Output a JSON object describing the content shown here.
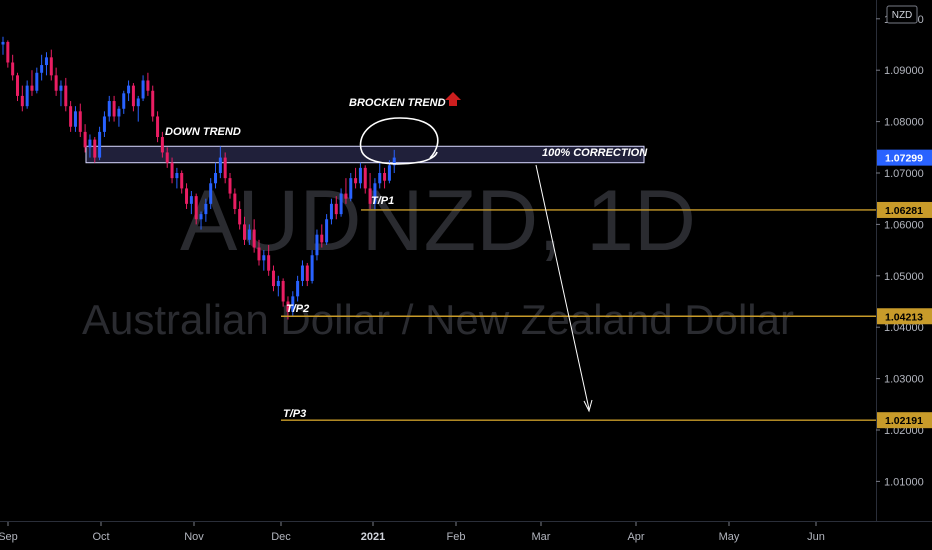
{
  "watermark": {
    "symbol": "AUDNZD, 1D",
    "description": "Australian Dollar / New Zealand Dollar"
  },
  "currency_badge": "NZD",
  "colors": {
    "background": "#000000",
    "up": "#2962ff",
    "down": "#e91e63",
    "level": "#c89b2a",
    "last_price": "#2962ff",
    "zone_fill": "#3a3a6a",
    "arrow_red": "#cc1e1e"
  },
  "annotations": {
    "down_trend": "DOWN TREND",
    "broken_trend": "BROCKEN TREND",
    "correction": "100% CORRECTION",
    "tp1": "T/P1",
    "tp2": "T/P2",
    "tp3": "T/P3"
  },
  "chart_data": {
    "type": "candlestick",
    "title": "",
    "xlabel": "",
    "ylabel": "",
    "ylim": [
      1.0,
      1.097
    ],
    "y_ticks": [
      "1.01000",
      "1.02000",
      "1.03000",
      "1.04000",
      "1.05000",
      "1.06000",
      "1.07000",
      "1.08000",
      "1.09000",
      "1.10000"
    ],
    "x_ticks": [
      "Sep",
      "Oct",
      "Nov",
      "Dec",
      "2021",
      "Feb",
      "Mar",
      "Apr",
      "May",
      "Jun"
    ],
    "price_labels": [
      {
        "label": "1.07299",
        "value": 1.07299,
        "kind": "last"
      },
      {
        "label": "1.06281",
        "value": 1.06281,
        "kind": "level"
      },
      {
        "label": "1.04213",
        "value": 1.04213,
        "kind": "level"
      },
      {
        "label": "1.02191",
        "value": 1.02191,
        "kind": "level"
      }
    ],
    "resistance_zone": [
      1.072,
      1.0752
    ],
    "series": [
      {
        "values": [
          [
            1.095,
            1.0965,
            1.093,
            1.0955
          ],
          [
            1.0955,
            1.0958,
            1.0905,
            1.0915
          ],
          [
            1.0915,
            1.093,
            1.088,
            1.089
          ],
          [
            1.089,
            1.0895,
            1.084,
            1.085
          ],
          [
            1.085,
            1.087,
            1.082,
            1.083
          ],
          [
            1.083,
            1.088,
            1.0825,
            1.087
          ],
          [
            1.087,
            1.09,
            1.085,
            1.086
          ],
          [
            1.086,
            1.0905,
            1.0855,
            1.0895
          ],
          [
            1.0895,
            1.093,
            1.088,
            1.091
          ],
          [
            1.091,
            1.0935,
            1.089,
            1.0925
          ],
          [
            1.0925,
            1.094,
            1.088,
            1.089
          ],
          [
            1.089,
            1.0905,
            1.085,
            1.086
          ],
          [
            1.086,
            1.088,
            1.083,
            1.087
          ],
          [
            1.087,
            1.0885,
            1.082,
            1.083
          ],
          [
            1.083,
            1.084,
            1.078,
            1.079
          ],
          [
            1.079,
            1.083,
            1.078,
            1.082
          ],
          [
            1.082,
            1.0835,
            1.077,
            1.078
          ],
          [
            1.078,
            1.0795,
            1.074,
            1.075
          ],
          [
            1.075,
            1.0775,
            1.073,
            1.0765
          ],
          [
            1.0765,
            1.077,
            1.072,
            1.073
          ],
          [
            1.073,
            1.079,
            1.0725,
            1.078
          ],
          [
            1.078,
            1.082,
            1.077,
            1.081
          ],
          [
            1.081,
            1.085,
            1.08,
            1.084
          ],
          [
            1.084,
            1.085,
            1.08,
            1.081
          ],
          [
            1.081,
            1.083,
            1.079,
            1.0825
          ],
          [
            1.0825,
            1.086,
            1.0815,
            1.0855
          ],
          [
            1.0855,
            1.088,
            1.084,
            1.087
          ],
          [
            1.087,
            1.0875,
            1.082,
            1.083
          ],
          [
            1.083,
            1.085,
            1.08,
            1.0845
          ],
          [
            1.0845,
            1.089,
            1.084,
            1.088
          ],
          [
            1.088,
            1.0895,
            1.085,
            1.086
          ],
          [
            1.086,
            1.087,
            1.08,
            1.081
          ],
          [
            1.081,
            1.082,
            1.076,
            1.077
          ],
          [
            1.077,
            1.078,
            1.073,
            1.074
          ],
          [
            1.074,
            1.075,
            1.071,
            1.072
          ],
          [
            1.072,
            1.073,
            1.068,
            1.069
          ],
          [
            1.069,
            1.071,
            1.067,
            1.07
          ],
          [
            1.07,
            1.0705,
            1.066,
            1.067
          ],
          [
            1.067,
            1.068,
            1.063,
            1.064
          ],
          [
            1.064,
            1.0665,
            1.062,
            1.0655
          ],
          [
            1.0655,
            1.066,
            1.06,
            1.061
          ],
          [
            1.061,
            1.0625,
            1.059,
            1.062
          ],
          [
            1.062,
            1.065,
            1.0605,
            1.064
          ],
          [
            1.064,
            1.069,
            1.063,
            1.068
          ],
          [
            1.068,
            1.072,
            1.067,
            1.07
          ],
          [
            1.07,
            1.0752,
            1.069,
            1.073
          ],
          [
            1.073,
            1.074,
            1.068,
            1.069
          ],
          [
            1.069,
            1.07,
            1.065,
            1.066
          ],
          [
            1.066,
            1.067,
            1.062,
            1.063
          ],
          [
            1.063,
            1.0645,
            1.059,
            1.06
          ],
          [
            1.06,
            1.0615,
            1.056,
            1.057
          ],
          [
            1.057,
            1.06,
            1.056,
            1.059
          ],
          [
            1.059,
            1.061,
            1.0545,
            1.0555
          ],
          [
            1.0555,
            1.057,
            1.052,
            1.053
          ],
          [
            1.053,
            1.055,
            1.051,
            1.054
          ],
          [
            1.054,
            1.056,
            1.05,
            1.051
          ],
          [
            1.051,
            1.052,
            1.047,
            1.048
          ],
          [
            1.048,
            1.05,
            1.046,
            1.049
          ],
          [
            1.049,
            1.0495,
            1.044,
            1.045
          ],
          [
            1.045,
            1.046,
            1.0415,
            1.043
          ],
          [
            1.043,
            1.047,
            1.0421,
            1.046
          ],
          [
            1.046,
            1.05,
            1.045,
            1.049
          ],
          [
            1.049,
            1.053,
            1.048,
            1.052
          ],
          [
            1.052,
            1.0525,
            1.048,
            1.049
          ],
          [
            1.049,
            1.055,
            1.0485,
            1.054
          ],
          [
            1.054,
            1.059,
            1.053,
            1.058
          ],
          [
            1.058,
            1.06,
            1.0555,
            1.0565
          ],
          [
            1.0565,
            1.062,
            1.056,
            1.061
          ],
          [
            1.061,
            1.065,
            1.06,
            1.064
          ],
          [
            1.064,
            1.0655,
            1.061,
            1.062
          ],
          [
            1.062,
            1.067,
            1.0615,
            1.066
          ],
          [
            1.066,
            1.069,
            1.064,
            1.065
          ],
          [
            1.065,
            1.07,
            1.0645,
            1.069
          ],
          [
            1.069,
            1.071,
            1.067,
            1.068
          ],
          [
            1.068,
            1.072,
            1.067,
            1.071
          ],
          [
            1.071,
            1.0715,
            1.066,
            1.067
          ],
          [
            1.067,
            1.07,
            1.063,
            1.064
          ],
          [
            1.064,
            1.069,
            1.0628,
            1.068
          ],
          [
            1.068,
            1.072,
            1.067,
            1.07
          ],
          [
            1.07,
            1.071,
            1.067,
            1.0685
          ],
          [
            1.0685,
            1.0725,
            1.068,
            1.0715
          ],
          [
            1.0715,
            1.0745,
            1.07,
            1.073
          ]
        ]
      }
    ]
  }
}
